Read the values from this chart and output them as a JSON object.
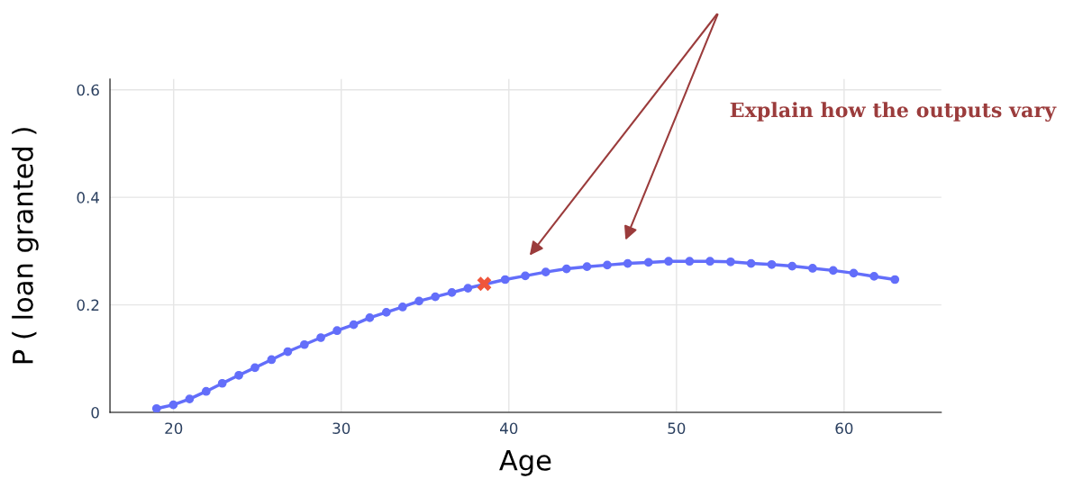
{
  "chart_data": {
    "type": "line",
    "xlabel": "Age",
    "ylabel": "P ( loan granted )",
    "xlim": [
      16.2,
      65.8
    ],
    "ylim": [
      0,
      0.62
    ],
    "xticks": [
      20,
      30,
      40,
      50,
      60
    ],
    "yticks": [
      {
        "value": 0,
        "label": "0"
      },
      0.2,
      0.4,
      0.6
    ],
    "grid": true,
    "legend": false,
    "series": [
      {
        "marker": "circle",
        "color": "#636efa",
        "x": [
          18.98,
          19.98,
          20.95,
          21.94,
          22.9,
          23.89,
          24.85,
          25.84,
          26.81,
          27.8,
          28.78,
          29.75,
          30.74,
          31.7,
          32.69,
          33.66,
          34.64,
          35.61,
          36.6,
          37.56,
          39.78,
          40.98,
          42.2,
          43.44,
          44.66,
          45.87,
          47.09,
          48.33,
          49.53,
          50.78,
          52.0,
          53.23,
          54.45,
          55.68,
          56.9,
          58.12,
          59.35,
          60.57,
          61.79,
          63.03
        ],
        "values": [
          0.007,
          0.014,
          0.025,
          0.039,
          0.054,
          0.069,
          0.083,
          0.098,
          0.113,
          0.126,
          0.139,
          0.152,
          0.163,
          0.176,
          0.186,
          0.196,
          0.207,
          0.215,
          0.223,
          0.231,
          0.247,
          0.254,
          0.261,
          0.267,
          0.271,
          0.274,
          0.277,
          0.279,
          0.281,
          0.281,
          0.281,
          0.28,
          0.277,
          0.275,
          0.272,
          0.268,
          0.264,
          0.259,
          0.253,
          0.247
        ]
      },
      {
        "type": "scatter",
        "marker": "cross",
        "color": "#ef553b",
        "x": [
          38.53
        ],
        "values": [
          0.239
        ]
      }
    ],
    "annotations": [
      "Explain how the outputs vary"
    ]
  }
}
